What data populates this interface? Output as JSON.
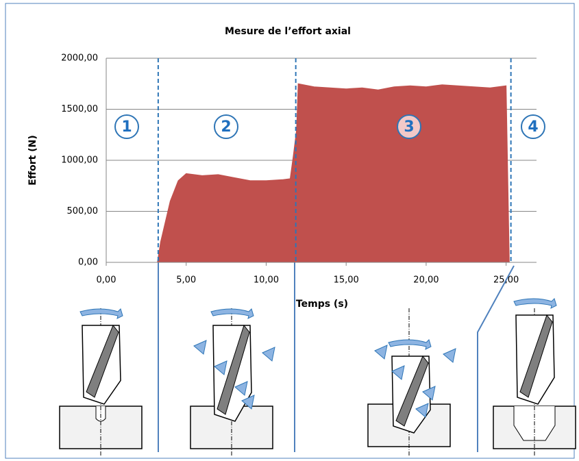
{
  "chart_data": {
    "type": "area",
    "title": "Mesure de l’effort axial",
    "x_label": "Temps (s)",
    "y_label": "Effort (N)",
    "color": "#c0504d",
    "x": [
      0,
      3.2,
      3.4,
      4.0,
      4.5,
      5.0,
      6.0,
      7.0,
      8.0,
      9.0,
      10.0,
      11.0,
      11.5,
      11.7,
      11.9,
      12.0,
      13,
      14,
      15,
      16,
      17,
      18,
      19,
      20,
      21,
      22,
      23,
      24,
      25,
      25.2,
      26.9
    ],
    "values": [
      0,
      0,
      200,
      600,
      800,
      870,
      850,
      860,
      830,
      800,
      800,
      810,
      820,
      1050,
      1300,
      1750,
      1720,
      1710,
      1700,
      1710,
      1690,
      1720,
      1730,
      1720,
      1740,
      1730,
      1720,
      1710,
      1730,
      0,
      0
    ],
    "xlim": [
      0,
      26.9
    ],
    "ylim": [
      0,
      2000
    ],
    "xticks": [
      {
        "value": 0,
        "label": "0,00"
      },
      {
        "value": 5,
        "label": "5,00"
      },
      {
        "value": 10,
        "label": "10,00"
      },
      {
        "value": 15,
        "label": "15,00"
      },
      {
        "value": 20,
        "label": "20,00"
      },
      {
        "value": 25,
        "label": "25,00"
      }
    ],
    "yticks": [
      {
        "value": 0,
        "label": "0,00"
      },
      {
        "value": 500,
        "label": "500,00"
      },
      {
        "value": 1000,
        "label": "1000,00"
      },
      {
        "value": 1500,
        "label": "1500,00"
      },
      {
        "value": 2000,
        "label": "2000,00"
      }
    ],
    "grid": true,
    "phase_boundaries": [
      3.25,
      11.85,
      25.3
    ],
    "phase_labels": [
      "1",
      "2",
      "3",
      "4"
    ]
  }
}
